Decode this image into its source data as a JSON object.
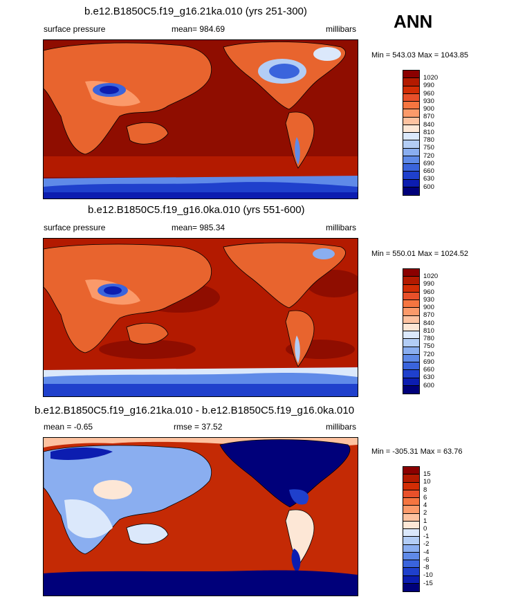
{
  "season": "ANN",
  "colors": {
    "ocean_abs": "#8f0d00",
    "ocean_diff": "#c42a05",
    "land": "#e8642e",
    "low": "#0f1a9a",
    "ice": "#00007a"
  },
  "panels": [
    {
      "title": "b.e12.B1850C5.f19_g16.21ka.010 (yrs 251-300)",
      "left_label": "surface pressure",
      "center_label": "mean= 984.69",
      "units": "millibars",
      "minmax": "Min = 543.03 Max = 1043.85"
    },
    {
      "title": "b.e12.B1850C5.f19_g16.0ka.010 (yrs 551-600)",
      "left_label": "surface pressure",
      "center_label": "mean= 985.34",
      "units": "millibars",
      "minmax": "Min = 550.01 Max = 1024.52"
    },
    {
      "title": "b.e12.B1850C5.f19_g16.21ka.010 - b.e12.B1850C5.f19_g16.0ka.010",
      "left_label": "mean =  -0.65",
      "center_label": "rmse =  37.52",
      "units": "millibars",
      "minmax": "Min = -305.31 Max =  63.76"
    }
  ],
  "chart_data": [
    {
      "type": "heatmap",
      "title": "b.e12.B1850C5.f19_g16.21ka.010 (yrs 251-300)",
      "variable": "surface pressure",
      "units": "millibars",
      "season": "ANN",
      "mean": 984.69,
      "min": 543.03,
      "max": 1043.85,
      "colorbar_levels": [
        "1020",
        "990",
        "960",
        "930",
        "900",
        "870",
        "840",
        "810",
        "780",
        "750",
        "720",
        "690",
        "660",
        "630",
        "600"
      ],
      "colorbar_colors": [
        "#8b0000",
        "#b31a00",
        "#d22d05",
        "#e8502a",
        "#f57540",
        "#fb9a6a",
        "#fdc2a0",
        "#fde7d6",
        "#dbe8fb",
        "#b3cdf5",
        "#8aaef0",
        "#5f8ae8",
        "#3a64dc",
        "#1f40cc",
        "#0c1db0",
        "#00007a"
      ]
    },
    {
      "type": "heatmap",
      "title": "b.e12.B1850C5.f19_g16.0ka.010 (yrs 551-600)",
      "variable": "surface pressure",
      "units": "millibars",
      "season": "ANN",
      "mean": 985.34,
      "min": 550.01,
      "max": 1024.52,
      "colorbar_levels": [
        "1020",
        "990",
        "960",
        "930",
        "900",
        "870",
        "840",
        "810",
        "780",
        "750",
        "720",
        "690",
        "660",
        "630",
        "600"
      ],
      "colorbar_colors": [
        "#8b0000",
        "#b31a00",
        "#d22d05",
        "#e8502a",
        "#f57540",
        "#fb9a6a",
        "#fdc2a0",
        "#fde7d6",
        "#dbe8fb",
        "#b3cdf5",
        "#8aaef0",
        "#5f8ae8",
        "#3a64dc",
        "#1f40cc",
        "#0c1db0",
        "#00007a"
      ]
    },
    {
      "type": "heatmap",
      "title": "b.e12.B1850C5.f19_g16.21ka.010 - b.e12.B1850C5.f19_g16.0ka.010",
      "units": "millibars",
      "season": "ANN",
      "mean": -0.65,
      "rmse": 37.52,
      "min": -305.31,
      "max": 63.76,
      "colorbar_levels": [
        "15",
        "10",
        "8",
        "6",
        "4",
        "2",
        "1",
        "0",
        "-1",
        "-2",
        "-4",
        "-6",
        "-8",
        "-10",
        "-15"
      ],
      "colorbar_colors": [
        "#8b0000",
        "#b31a00",
        "#d22d05",
        "#e8502a",
        "#f57540",
        "#fb9a6a",
        "#fdc2a0",
        "#fde7d6",
        "#dbe8fb",
        "#b3cdf5",
        "#8aaef0",
        "#5f8ae8",
        "#3a64dc",
        "#1f40cc",
        "#0c1db0",
        "#00007a"
      ]
    }
  ]
}
